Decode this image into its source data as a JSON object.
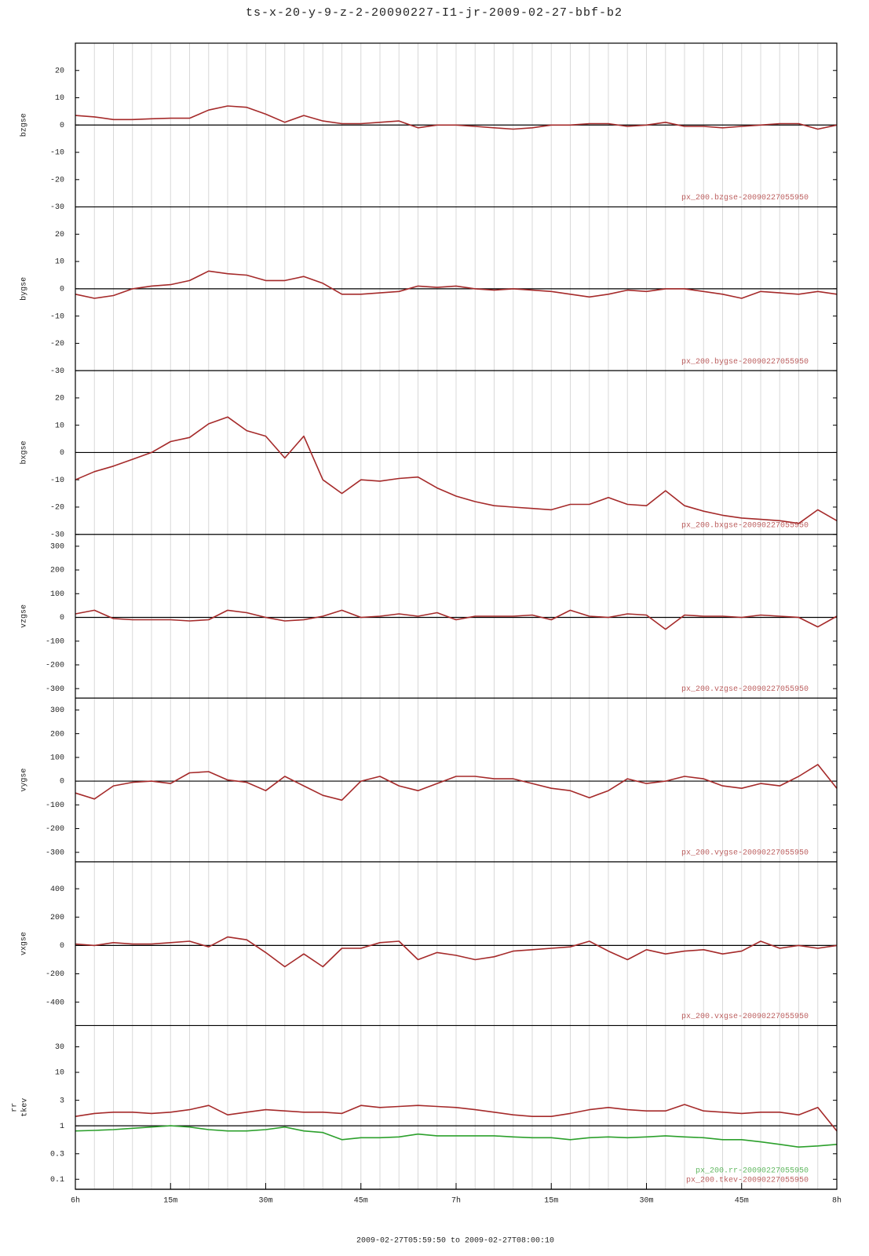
{
  "title": "ts-x-20-y-9-z-2-20090227-I1-jr-2009-02-27-bbf-b2",
  "xlabel": "2009-02-27T05:59:50 to 2009-02-27T08:00:10",
  "x": [
    0,
    3,
    6,
    9,
    12,
    15,
    18,
    21,
    24,
    27,
    30,
    33,
    36,
    39,
    42,
    45,
    48,
    51,
    54,
    57,
    60,
    63,
    66,
    69,
    72,
    75,
    78,
    81,
    84,
    87,
    90,
    93,
    96,
    99,
    102,
    105,
    108,
    111,
    114,
    117,
    120
  ],
  "xlim": [
    0,
    120
  ],
  "xticks": [
    {
      "value": 0,
      "label": "6h"
    },
    {
      "value": 15,
      "label": "15m"
    },
    {
      "value": 30,
      "label": "30m"
    },
    {
      "value": 45,
      "label": "45m"
    },
    {
      "value": 60,
      "label": "7h"
    },
    {
      "value": 75,
      "label": "15m"
    },
    {
      "value": 90,
      "label": "30m"
    },
    {
      "value": 105,
      "label": "45m"
    },
    {
      "value": 120,
      "label": "8h"
    }
  ],
  "x_minor_step": 3,
  "chart_data": [
    {
      "type": "line",
      "ylabel": "bzgse",
      "ylim": [
        -30,
        30
      ],
      "yticks": [
        20,
        10,
        0,
        -10,
        -20,
        -30
      ],
      "hline": 0,
      "series": [
        {
          "name": "px_200.bzgse-20090227055950",
          "color": "#a52a2a",
          "values": [
            3.5,
            3,
            2,
            2,
            2.3,
            2.5,
            2.5,
            5.5,
            7,
            6.5,
            4,
            1,
            3.5,
            1.5,
            0.5,
            0.5,
            1,
            1.5,
            -1,
            0,
            0,
            -0.5,
            -1,
            -1.5,
            -1,
            0,
            0,
            0.5,
            0.5,
            -0.5,
            0,
            1,
            -0.5,
            -0.5,
            -1,
            -0.5,
            0,
            0.5,
            0.5,
            -1.5,
            0
          ]
        }
      ]
    },
    {
      "type": "line",
      "ylabel": "bygse",
      "ylim": [
        -30,
        30
      ],
      "yticks": [
        20,
        10,
        0,
        -10,
        -20,
        -30
      ],
      "hline": 0,
      "series": [
        {
          "name": "px_200.bygse-20090227055950",
          "color": "#a52a2a",
          "values": [
            -2,
            -3.5,
            -2.5,
            0,
            1,
            1.5,
            3,
            6.5,
            5.5,
            5,
            3,
            3,
            4.5,
            2,
            -2,
            -2,
            -1.5,
            -1,
            1,
            0.5,
            1,
            0,
            -0.5,
            0,
            -0.5,
            -1,
            -2,
            -3,
            -2,
            -0.5,
            -1,
            0,
            0,
            -1,
            -2,
            -3.5,
            -1,
            -1.5,
            -2,
            -1,
            -2
          ]
        }
      ]
    },
    {
      "type": "line",
      "ylabel": "bxgse",
      "ylim": [
        -30,
        30
      ],
      "yticks": [
        20,
        10,
        0,
        -10,
        -20,
        -30
      ],
      "hline": 0,
      "series": [
        {
          "name": "px_200.bxgse-20090227055950",
          "color": "#a52a2a",
          "values": [
            -10,
            -7,
            -5,
            -2.5,
            0,
            4,
            5.5,
            10.5,
            13,
            8,
            6,
            -2,
            6,
            -10,
            -15,
            -10,
            -10.5,
            -9.5,
            -9,
            -13,
            -16,
            -18,
            -19.5,
            -20,
            -20.5,
            -21,
            -19,
            -19,
            -16.5,
            -19,
            -19.5,
            -14,
            -19.5,
            -21.5,
            -23,
            -24,
            -24.5,
            -25,
            -26,
            -21,
            -25
          ]
        }
      ]
    },
    {
      "type": "line",
      "ylabel": "vzgse",
      "ylim": [
        -340,
        350
      ],
      "yticks": [
        300,
        200,
        100,
        0,
        -100,
        -200,
        -300
      ],
      "hline": 0,
      "series": [
        {
          "name": "px_200.vzgse-20090227055950",
          "color": "#a52a2a",
          "values": [
            15,
            30,
            -5,
            -10,
            -10,
            -10,
            -15,
            -10,
            30,
            20,
            0,
            -15,
            -10,
            5,
            30,
            0,
            5,
            15,
            5,
            20,
            -10,
            5,
            5,
            5,
            10,
            -10,
            30,
            5,
            0,
            15,
            10,
            -50,
            10,
            5,
            5,
            0,
            10,
            5,
            0,
            -40,
            5
          ]
        }
      ]
    },
    {
      "type": "line",
      "ylabel": "vygse",
      "ylim": [
        -340,
        350
      ],
      "yticks": [
        300,
        200,
        100,
        0,
        -100,
        -200,
        -300
      ],
      "hline": 0,
      "series": [
        {
          "name": "px_200.vygse-20090227055950",
          "color": "#a52a2a",
          "values": [
            -50,
            -75,
            -20,
            -5,
            0,
            -10,
            35,
            40,
            5,
            -5,
            -40,
            20,
            -20,
            -60,
            -80,
            0,
            20,
            -20,
            -40,
            -10,
            20,
            20,
            10,
            10,
            -10,
            -30,
            -40,
            -70,
            -40,
            10,
            -10,
            0,
            20,
            10,
            -20,
            -30,
            -10,
            -20,
            20,
            70,
            -30
          ]
        }
      ]
    },
    {
      "type": "line",
      "ylabel": "vxgse",
      "ylim": [
        -565,
        590
      ],
      "yticks": [
        400,
        200,
        0,
        -200,
        -400
      ],
      "hline": 0,
      "series": [
        {
          "name": "px_200.vxgse-20090227055950",
          "color": "#a52a2a",
          "values": [
            10,
            0,
            20,
            10,
            10,
            20,
            30,
            -10,
            60,
            40,
            -50,
            -150,
            -60,
            -150,
            -20,
            -20,
            20,
            30,
            -100,
            -50,
            -70,
            -100,
            -80,
            -40,
            -30,
            -20,
            -10,
            30,
            -40,
            -100,
            -30,
            -60,
            -40,
            -30,
            -60,
            -40,
            30,
            -20,
            0,
            -20,
            0
          ]
        }
      ]
    },
    {
      "type": "line",
      "ylabel": [
        "rr",
        "tkev"
      ],
      "yscale": "log",
      "ylim": [
        0.065,
        75
      ],
      "yticks": [
        30,
        10,
        3,
        1,
        0.3,
        0.1
      ],
      "hline": 1,
      "series": [
        {
          "name": "px_200.rr-20090227055950",
          "color": "#2ca02c",
          "values": [
            0.8,
            0.82,
            0.85,
            0.9,
            0.95,
            1.0,
            0.95,
            0.85,
            0.8,
            0.8,
            0.85,
            0.95,
            0.8,
            0.75,
            0.55,
            0.6,
            0.6,
            0.62,
            0.7,
            0.65,
            0.65,
            0.65,
            0.65,
            0.62,
            0.6,
            0.6,
            0.55,
            0.6,
            0.62,
            0.6,
            0.62,
            0.65,
            0.62,
            0.6,
            0.55,
            0.55,
            0.5,
            0.45,
            0.4,
            0.42,
            0.45
          ]
        },
        {
          "name": "px_200.tkev-20090227055950",
          "color": "#a52a2a",
          "values": [
            1.5,
            1.7,
            1.8,
            1.8,
            1.7,
            1.8,
            2.0,
            2.4,
            1.6,
            1.8,
            2.0,
            1.9,
            1.8,
            1.8,
            1.7,
            2.4,
            2.2,
            2.3,
            2.4,
            2.3,
            2.2,
            2.0,
            1.8,
            1.6,
            1.5,
            1.5,
            1.7,
            2.0,
            2.2,
            2.0,
            1.9,
            1.9,
            2.5,
            1.9,
            1.8,
            1.7,
            1.8,
            1.8,
            1.6,
            2.2,
            0.8
          ]
        }
      ]
    }
  ]
}
